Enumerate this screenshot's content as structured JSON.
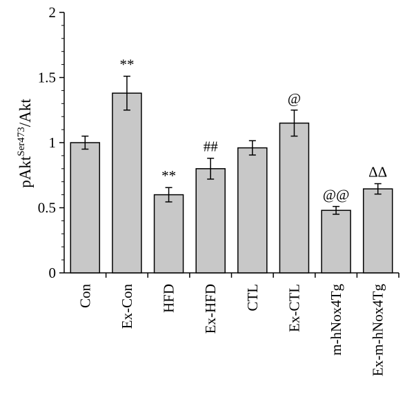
{
  "chart_data": {
    "type": "bar",
    "title": "",
    "xlabel": "",
    "ylabel": {
      "main": "pAkt",
      "superscript": "Ser473",
      "suffix": "/Akt"
    },
    "ylim": [
      0,
      2
    ],
    "yticks": [
      "0",
      "0.5",
      "1",
      "1.5",
      "2"
    ],
    "grid": false,
    "categories": [
      "Con",
      "Ex-Con",
      "HFD",
      "Ex-HFD",
      "CTL",
      "Ex-CTL",
      "m-hNox4Tg",
      "Ex-m-hNox4Tg"
    ],
    "values": [
      1.0,
      1.38,
      0.6,
      0.8,
      0.96,
      1.15,
      0.48,
      0.645
    ],
    "errors": [
      0.05,
      0.13,
      0.055,
      0.08,
      0.055,
      0.1,
      0.03,
      0.04
    ],
    "annotations": [
      "",
      "**",
      "**",
      "##",
      "",
      "@",
      "@@",
      "ΔΔ"
    ],
    "bar_color": "#c8c8c8",
    "edge_color": "#000000"
  }
}
